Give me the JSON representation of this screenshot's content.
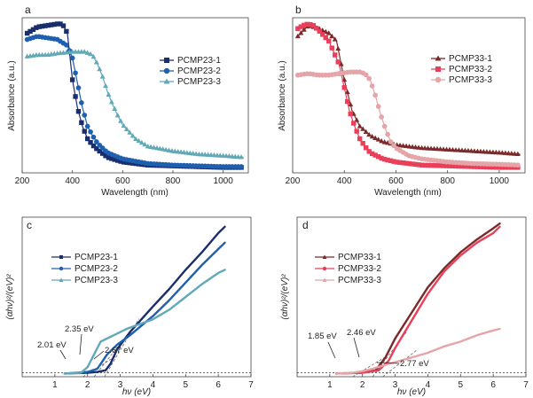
{
  "chart_data": [
    {
      "id": "a",
      "type": "line",
      "panel_label": "a",
      "xlabel": "Wavelength (nm)",
      "ylabel": "Absorbance (a.u.)",
      "xlim": [
        200,
        1100
      ],
      "ylim": [
        0,
        1.0
      ],
      "xticks": [
        200,
        400,
        600,
        800,
        1000
      ],
      "xtick_labels": [
        "200",
        "400",
        "600",
        "800",
        "1000"
      ],
      "marker_step": 12,
      "legend_position": "top-right",
      "series": [
        {
          "name": "PCMP23-1",
          "color": "#1a2e6e",
          "marker": "square",
          "x": [
            220,
            260,
            300,
            340,
            360,
            380,
            400,
            420,
            440,
            460,
            480,
            500,
            540,
            600,
            700,
            800,
            900,
            1000,
            1080
          ],
          "y": [
            0.9,
            0.94,
            0.95,
            0.96,
            0.96,
            0.9,
            0.6,
            0.42,
            0.3,
            0.22,
            0.18,
            0.15,
            0.1,
            0.07,
            0.05,
            0.045,
            0.04,
            0.035,
            0.035
          ]
        },
        {
          "name": "PCMP23-2",
          "color": "#1f5fb0",
          "marker": "circle",
          "x": [
            220,
            260,
            300,
            340,
            380,
            400,
            420,
            440,
            460,
            480,
            500,
            540,
            600,
            700,
            800,
            900,
            1000,
            1080
          ],
          "y": [
            0.86,
            0.88,
            0.87,
            0.86,
            0.82,
            0.74,
            0.58,
            0.42,
            0.3,
            0.24,
            0.19,
            0.13,
            0.09,
            0.06,
            0.05,
            0.045,
            0.04,
            0.04
          ]
        },
        {
          "name": "PCMP23-3",
          "color": "#62a9b8",
          "marker": "triangle",
          "x": [
            220,
            260,
            300,
            340,
            400,
            450,
            480,
            500,
            520,
            540,
            560,
            580,
            600,
            650,
            700,
            800,
            900,
            1000,
            1080
          ],
          "y": [
            0.75,
            0.76,
            0.76,
            0.77,
            0.78,
            0.78,
            0.76,
            0.7,
            0.62,
            0.52,
            0.44,
            0.37,
            0.31,
            0.22,
            0.17,
            0.14,
            0.12,
            0.11,
            0.1
          ]
        }
      ]
    },
    {
      "id": "b",
      "type": "line",
      "panel_label": "b",
      "xlabel": "Wavelength (nm)",
      "ylabel": "Absorbance (a.u.)",
      "xlim": [
        200,
        1100
      ],
      "ylim": [
        0,
        1.0
      ],
      "xticks": [
        200,
        400,
        600,
        800,
        1000
      ],
      "xtick_labels": [
        "200",
        "400",
        "600",
        "800",
        "1000"
      ],
      "marker_step": 12,
      "legend_position": "top-right",
      "series": [
        {
          "name": "PCMP33-1",
          "color": "#7a2a2a",
          "marker": "triangle",
          "x": [
            220,
            260,
            300,
            340,
            370,
            400,
            430,
            460,
            500,
            550,
            600,
            700,
            800,
            900,
            1000,
            1080
          ],
          "y": [
            0.88,
            0.95,
            0.93,
            0.9,
            0.85,
            0.6,
            0.4,
            0.3,
            0.24,
            0.2,
            0.18,
            0.16,
            0.15,
            0.14,
            0.13,
            0.12
          ]
        },
        {
          "name": "PCMP33-2",
          "color": "#e8405a",
          "marker": "square",
          "x": [
            220,
            240,
            260,
            280,
            300,
            340,
            380,
            400,
            420,
            440,
            460,
            480,
            500,
            550,
            600,
            700,
            800,
            900,
            1000,
            1080
          ],
          "y": [
            0.93,
            0.95,
            0.96,
            0.95,
            0.92,
            0.85,
            0.7,
            0.55,
            0.4,
            0.3,
            0.22,
            0.17,
            0.13,
            0.09,
            0.07,
            0.05,
            0.045,
            0.04,
            0.035,
            0.035
          ]
        },
        {
          "name": "PCMP33-3",
          "color": "#e5a5a8",
          "marker": "circle",
          "x": [
            220,
            260,
            300,
            340,
            380,
            420,
            460,
            480,
            500,
            520,
            540,
            560,
            580,
            600,
            650,
            700,
            800,
            900,
            1000,
            1080
          ],
          "y": [
            0.63,
            0.64,
            0.63,
            0.63,
            0.64,
            0.65,
            0.65,
            0.64,
            0.6,
            0.5,
            0.38,
            0.28,
            0.2,
            0.16,
            0.11,
            0.09,
            0.07,
            0.06,
            0.055,
            0.05
          ]
        }
      ]
    },
    {
      "id": "c",
      "type": "line",
      "panel_label": "c",
      "xlabel": "hν (eV)",
      "ylabel": "(αhν)²/(eV)²",
      "xlim": [
        0,
        7
      ],
      "ylim": [
        0,
        1.0
      ],
      "xticks": [
        1,
        2,
        3,
        4,
        5,
        6,
        7
      ],
      "xtick_labels": [
        "1",
        "2",
        "3",
        "4",
        "5",
        "6",
        "7"
      ],
      "marker_step": 0,
      "legend_position": "top-left",
      "baseline_y": 0.025,
      "series": [
        {
          "name": "PCMP23-1",
          "color": "#1a2e6e",
          "marker": "square",
          "x": [
            1.3,
            2.0,
            2.3,
            2.55,
            2.7,
            2.9,
            3.3,
            4.0,
            4.5,
            5.0,
            5.5,
            6.0,
            6.2
          ],
          "y": [
            0.02,
            0.025,
            0.03,
            0.04,
            0.08,
            0.17,
            0.28,
            0.44,
            0.55,
            0.67,
            0.78,
            0.9,
            0.94
          ]
        },
        {
          "name": "PCMP23-2",
          "color": "#1f5fb0",
          "marker": "circle",
          "x": [
            1.3,
            2.0,
            2.3,
            2.6,
            2.9,
            3.3,
            4.0,
            4.5,
            5.0,
            5.5,
            6.0,
            6.2
          ],
          "y": [
            0.02,
            0.03,
            0.05,
            0.14,
            0.2,
            0.26,
            0.38,
            0.48,
            0.59,
            0.7,
            0.8,
            0.84
          ]
        },
        {
          "name": "PCMP23-3",
          "color": "#62a9b8",
          "marker": "triangle",
          "x": [
            1.3,
            1.8,
            2.0,
            2.2,
            2.4,
            2.7,
            3.2,
            4.0,
            4.5,
            5.0,
            5.5,
            6.0,
            6.2
          ],
          "y": [
            0.02,
            0.025,
            0.06,
            0.14,
            0.22,
            0.25,
            0.3,
            0.36,
            0.42,
            0.5,
            0.58,
            0.65,
            0.67
          ]
        }
      ],
      "annotations": [
        {
          "text": "2.01 eV",
          "x": 2.01
        },
        {
          "text": "2.35 eV",
          "x": 2.35
        },
        {
          "text": "2.67 eV",
          "x": 2.67
        }
      ]
    },
    {
      "id": "d",
      "type": "line",
      "panel_label": "d",
      "xlabel": "hν (eV)",
      "ylabel": "(αhν)²/(eV)²",
      "xlim": [
        0,
        7
      ],
      "ylim": [
        0,
        1.0
      ],
      "xticks": [
        1,
        2,
        3,
        4,
        5,
        6,
        7
      ],
      "xtick_labels": [
        "1",
        "2",
        "3",
        "4",
        "5",
        "6",
        "7"
      ],
      "marker_step": 0,
      "legend_position": "top-left",
      "baseline_y": 0.025,
      "series": [
        {
          "name": "PCMP33-1",
          "color": "#7a2a2a",
          "marker": "triangle",
          "x": [
            1.2,
            2.0,
            2.4,
            2.7,
            3.0,
            3.5,
            4.0,
            4.5,
            5.0,
            5.5,
            6.0,
            6.2
          ],
          "y": [
            0.02,
            0.025,
            0.04,
            0.12,
            0.24,
            0.4,
            0.56,
            0.68,
            0.78,
            0.86,
            0.93,
            0.96
          ]
        },
        {
          "name": "PCMP33-2",
          "color": "#e8405a",
          "marker": "circle",
          "x": [
            1.2,
            2.0,
            2.5,
            2.8,
            3.0,
            3.5,
            4.0,
            4.5,
            5.0,
            5.5,
            6.0,
            6.2
          ],
          "y": [
            0.02,
            0.025,
            0.04,
            0.1,
            0.18,
            0.35,
            0.52,
            0.66,
            0.76,
            0.84,
            0.9,
            0.94
          ]
        },
        {
          "name": "PCMP33-3",
          "color": "#e5a5a8",
          "marker": "triangle",
          "x": [
            1.2,
            1.7,
            2.0,
            2.3,
            2.8,
            3.5,
            4.0,
            4.5,
            5.0,
            5.5,
            6.0,
            6.2
          ],
          "y": [
            0.02,
            0.025,
            0.035,
            0.05,
            0.08,
            0.12,
            0.15,
            0.19,
            0.22,
            0.26,
            0.29,
            0.3
          ]
        }
      ],
      "annotations": [
        {
          "text": "1.85 eV",
          "x": 1.85
        },
        {
          "text": "2.46 eV",
          "x": 2.46
        },
        {
          "text": "2.77 eV",
          "x": 2.77
        }
      ]
    }
  ]
}
